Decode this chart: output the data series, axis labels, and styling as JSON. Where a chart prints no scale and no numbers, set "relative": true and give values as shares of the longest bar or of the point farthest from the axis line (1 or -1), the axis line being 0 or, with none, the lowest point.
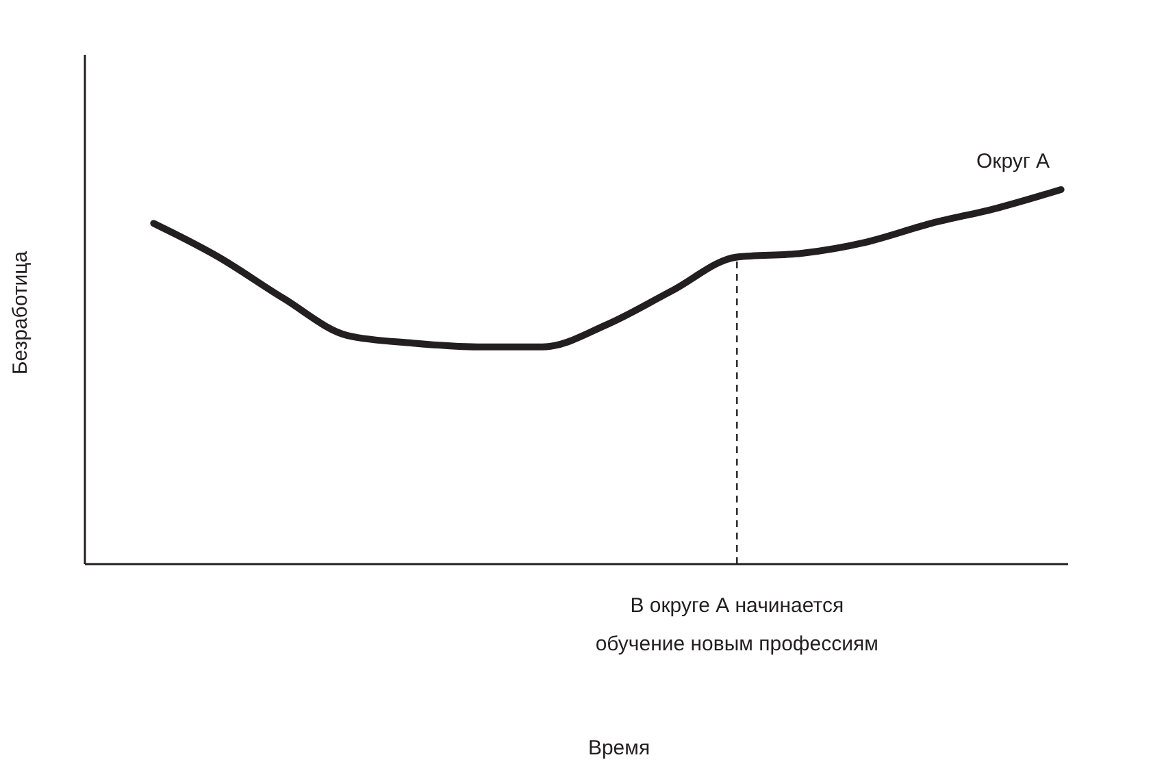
{
  "chart_data": {
    "type": "line",
    "relative": true,
    "ylabel": "Безработица",
    "annotations": [
      "В округе А начинается\nобучение новым профессиям",
      "Время"
    ],
    "categories": [
      null,
      null,
      null,
      null,
      null,
      null,
      null,
      null,
      null,
      null,
      null,
      null,
      null,
      null,
      null
    ],
    "series": [
      {
        "name": "Округ А",
        "color": "#231f20",
        "values": [
          0.91,
          0.82,
          0.71,
          0.61,
          0.59,
          0.58,
          0.58,
          0.64,
          0.73,
          0.82,
          0.83,
          0.86,
          0.91,
          0.95,
          1
        ]
      }
    ]
  }
}
